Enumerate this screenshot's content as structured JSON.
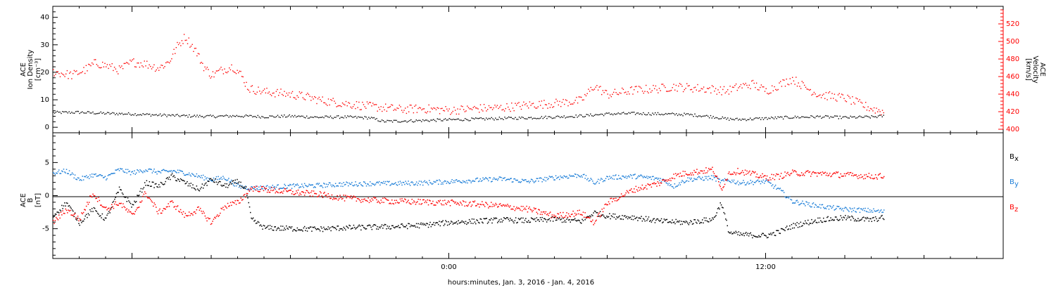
{
  "chart_data": [
    {
      "type": "scatter",
      "panel": "top",
      "ylabel_left": [
        "ACE",
        "Ion Density",
        "[cm⁻³]"
      ],
      "ylabel_right": [
        "ACE",
        "Velocity",
        "[km/s]"
      ],
      "ylim": [
        -2,
        44
      ],
      "yticks": [
        0,
        10,
        20,
        30,
        40
      ],
      "ylim_right": [
        396,
        540
      ],
      "yticks_right": [
        400,
        420,
        440,
        460,
        480,
        500,
        520
      ],
      "right_axis_color": "#ff0000",
      "series": [
        {
          "color": "#000000",
          "axis": "left",
          "points": [
            [
              -15,
              5.5
            ],
            [
              -14,
              5.6
            ],
            [
              -13,
              5.2
            ],
            [
              -12,
              5.0
            ],
            [
              -11,
              4.6
            ],
            [
              -10,
              4.3
            ],
            [
              -9,
              4.1
            ],
            [
              -8,
              4.3
            ],
            [
              -7,
              4.0
            ],
            [
              -6,
              4.2
            ],
            [
              -5,
              3.8
            ],
            [
              -4,
              3.9
            ],
            [
              -3,
              3.6
            ],
            [
              -2.5,
              2.3
            ],
            [
              -2,
              2.4
            ],
            [
              -1,
              2.6
            ],
            [
              0,
              2.9
            ],
            [
              1,
              3.1
            ],
            [
              2,
              3.4
            ],
            [
              3,
              3.6
            ],
            [
              4,
              3.9
            ],
            [
              5,
              4.3
            ],
            [
              6,
              5.0
            ],
            [
              7,
              5.2
            ],
            [
              8,
              5.0
            ],
            [
              9,
              4.8
            ],
            [
              10,
              4.0
            ],
            [
              10.5,
              3.2
            ],
            [
              11,
              3.0
            ],
            [
              12,
              3.4
            ],
            [
              13,
              3.8
            ],
            [
              14,
              4.0
            ],
            [
              15,
              3.7
            ],
            [
              16,
              3.9
            ],
            [
              16.5,
              4.3
            ]
          ]
        },
        {
          "color": "#ff0000",
          "axis": "right",
          "points": [
            [
              -15,
              466
            ],
            [
              -14.3,
              462
            ],
            [
              -13.8,
              468
            ],
            [
              -13.4,
              476
            ],
            [
              -13,
              473
            ],
            [
              -12.5,
              468
            ],
            [
              -12,
              477
            ],
            [
              -11.5,
              475
            ],
            [
              -11,
              470
            ],
            [
              -10.6,
              478
            ],
            [
              -10.3,
              495
            ],
            [
              -10,
              506
            ],
            [
              -9.6,
              490
            ],
            [
              -9.3,
              472
            ],
            [
              -9,
              462
            ],
            [
              -8.6,
              468
            ],
            [
              -8.2,
              472
            ],
            [
              -7.9,
              463
            ],
            [
              -7.6,
              447
            ],
            [
              -7,
              443
            ],
            [
              -6.2,
              441
            ],
            [
              -5.5,
              438
            ],
            [
              -4.8,
              433
            ],
            [
              -4,
              430
            ],
            [
              -3.2,
              427
            ],
            [
              -2.5,
              425
            ],
            [
              -1.8,
              423
            ],
            [
              -1,
              424
            ],
            [
              0,
              422
            ],
            [
              1,
              424
            ],
            [
              2,
              425
            ],
            [
              3,
              428
            ],
            [
              4,
              430
            ],
            [
              5,
              433
            ],
            [
              5.5,
              450
            ],
            [
              6,
              440
            ],
            [
              7,
              445
            ],
            [
              8,
              447
            ],
            [
              8.5,
              449
            ],
            [
              9,
              448
            ],
            [
              10,
              446
            ],
            [
              10.5,
              444
            ],
            [
              11,
              449
            ],
            [
              11.5,
              452
            ],
            [
              12,
              444
            ],
            [
              12.5,
              451
            ],
            [
              13,
              458
            ],
            [
              13.5,
              448
            ],
            [
              14,
              440
            ],
            [
              15,
              436
            ],
            [
              15.5,
              430
            ],
            [
              16,
              424
            ],
            [
              16.5,
              420
            ]
          ]
        }
      ]
    },
    {
      "type": "scatter",
      "panel": "bottom",
      "ylabel_left": [
        "ACE",
        "B",
        "[nT]"
      ],
      "ylim": [
        -9.5,
        9.5
      ],
      "yticks": [
        -5,
        0,
        5
      ],
      "legend": [
        {
          "label": "B",
          "sub": "x",
          "color": "#000000"
        },
        {
          "label": "B",
          "sub": "y",
          "color": "#1e7fd8"
        },
        {
          "label": "B",
          "sub": "z",
          "color": "#ff0000"
        }
      ],
      "series": [
        {
          "name": "Bx",
          "color": "#000000",
          "points": [
            [
              -15,
              -3
            ],
            [
              -14.5,
              -1
            ],
            [
              -14,
              -4
            ],
            [
              -13.5,
              -2
            ],
            [
              -13,
              -3.5
            ],
            [
              -12.5,
              1
            ],
            [
              -12,
              -1.5
            ],
            [
              -11.5,
              2
            ],
            [
              -11,
              1.5
            ],
            [
              -10.5,
              3
            ],
            [
              -10,
              2
            ],
            [
              -9.5,
              1
            ],
            [
              -9,
              2.5
            ],
            [
              -8.5,
              1.5
            ],
            [
              -8,
              2.2
            ],
            [
              -7.7,
              1
            ],
            [
              -7.5,
              -3.5
            ],
            [
              -7,
              -4.8
            ],
            [
              -6,
              -4.9
            ],
            [
              -5,
              -5.0
            ],
            [
              -4,
              -4.8
            ],
            [
              -3,
              -4.7
            ],
            [
              -2,
              -4.6
            ],
            [
              -1,
              -4.4
            ],
            [
              0,
              -4.0
            ],
            [
              1,
              -3.8
            ],
            [
              2,
              -3.6
            ],
            [
              3,
              -3.7
            ],
            [
              4,
              -3.5
            ],
            [
              5,
              -3.8
            ],
            [
              5.5,
              -2.5
            ],
            [
              6,
              -3.0
            ],
            [
              7,
              -3.2
            ],
            [
              8,
              -3.8
            ],
            [
              9,
              -4.0
            ],
            [
              10,
              -3.5
            ],
            [
              10.3,
              -1
            ],
            [
              10.6,
              -5.5
            ],
            [
              11,
              -5.8
            ],
            [
              12,
              -6.0
            ],
            [
              12.5,
              -5.4
            ],
            [
              13,
              -4.5
            ],
            [
              14,
              -3.6
            ],
            [
              15,
              -3.3
            ],
            [
              16,
              -3.6
            ],
            [
              16.5,
              -3.2
            ]
          ]
        },
        {
          "name": "By",
          "color": "#1e7fd8",
          "points": [
            [
              -15,
              3.5
            ],
            [
              -14.5,
              3.8
            ],
            [
              -14,
              2.5
            ],
            [
              -13.5,
              3.2
            ],
            [
              -13,
              2.8
            ],
            [
              -12.5,
              4
            ],
            [
              -12,
              3.5
            ],
            [
              -11.5,
              4
            ],
            [
              -11,
              3.6
            ],
            [
              -10.5,
              3.8
            ],
            [
              -10,
              3.5
            ],
            [
              -9.5,
              3
            ],
            [
              -9,
              2.5
            ],
            [
              -8.5,
              2.8
            ],
            [
              -8,
              1.5
            ],
            [
              -7.5,
              1.2
            ],
            [
              -7,
              1.3
            ],
            [
              -6,
              1.5
            ],
            [
              -5,
              1.6
            ],
            [
              -4,
              1.8
            ],
            [
              -3,
              1.9
            ],
            [
              -2,
              1.9
            ],
            [
              -1,
              2.0
            ],
            [
              0,
              2.2
            ],
            [
              1,
              2.4
            ],
            [
              2,
              2.6
            ],
            [
              3,
              2.2
            ],
            [
              4,
              2.8
            ],
            [
              5,
              3.2
            ],
            [
              5.5,
              2.0
            ],
            [
              6,
              2.8
            ],
            [
              7,
              3.0
            ],
            [
              8,
              2.6
            ],
            [
              8.5,
              1.5
            ],
            [
              9,
              2.5
            ],
            [
              10,
              2.8
            ],
            [
              10.3,
              2.2
            ],
            [
              10.6,
              2.4
            ],
            [
              11,
              2.0
            ],
            [
              12,
              2.2
            ],
            [
              12.5,
              1.0
            ],
            [
              13,
              -0.8
            ],
            [
              14,
              -1.5
            ],
            [
              15,
              -2.0
            ],
            [
              16,
              -2.2
            ],
            [
              16.5,
              -2.4
            ]
          ]
        },
        {
          "name": "Bz",
          "color": "#ff0000",
          "points": [
            [
              -15,
              -4
            ],
            [
              -14.5,
              -2
            ],
            [
              -14,
              -3.5
            ],
            [
              -13.5,
              0.5
            ],
            [
              -13,
              -2
            ],
            [
              -12.5,
              -1
            ],
            [
              -12,
              -3
            ],
            [
              -11.5,
              0.5
            ],
            [
              -11,
              -2.5
            ],
            [
              -10.5,
              -1
            ],
            [
              -10,
              -3
            ],
            [
              -9.5,
              -2
            ],
            [
              -9,
              -4
            ],
            [
              -8.5,
              -1.5
            ],
            [
              -8,
              -1
            ],
            [
              -7.5,
              1.2
            ],
            [
              -7,
              1.0
            ],
            [
              -6,
              0.6
            ],
            [
              -5,
              0.3
            ],
            [
              -4,
              -0.3
            ],
            [
              -3,
              -0.6
            ],
            [
              -2,
              -0.8
            ],
            [
              -1,
              -0.9
            ],
            [
              0,
              -1.0
            ],
            [
              1,
              -1.2
            ],
            [
              2,
              -1.5
            ],
            [
              3,
              -2.0
            ],
            [
              4,
              -3.0
            ],
            [
              5,
              -2.5
            ],
            [
              5.5,
              -4.0
            ],
            [
              6,
              -1.0
            ],
            [
              7,
              1.0
            ],
            [
              8,
              2.0
            ],
            [
              8.5,
              3.0
            ],
            [
              9,
              3.5
            ],
            [
              10,
              4.0
            ],
            [
              10.3,
              1.0
            ],
            [
              10.6,
              3.5
            ],
            [
              11,
              3.8
            ],
            [
              12,
              2.8
            ],
            [
              12.5,
              3.0
            ],
            [
              13,
              3.5
            ],
            [
              14,
              3.4
            ],
            [
              15,
              3.2
            ],
            [
              16,
              3.0
            ],
            [
              16.5,
              3.0
            ]
          ]
        }
      ]
    }
  ],
  "x_axis": {
    "ticks": [
      {
        "h": 0,
        "label": "0:00"
      },
      {
        "h": 12,
        "label": "12:00"
      }
    ],
    "xlabel": "hours:minutes, Jan.  3, 2016 - Jan.  4, 2016",
    "range_hours": [
      -15,
      21
    ]
  }
}
